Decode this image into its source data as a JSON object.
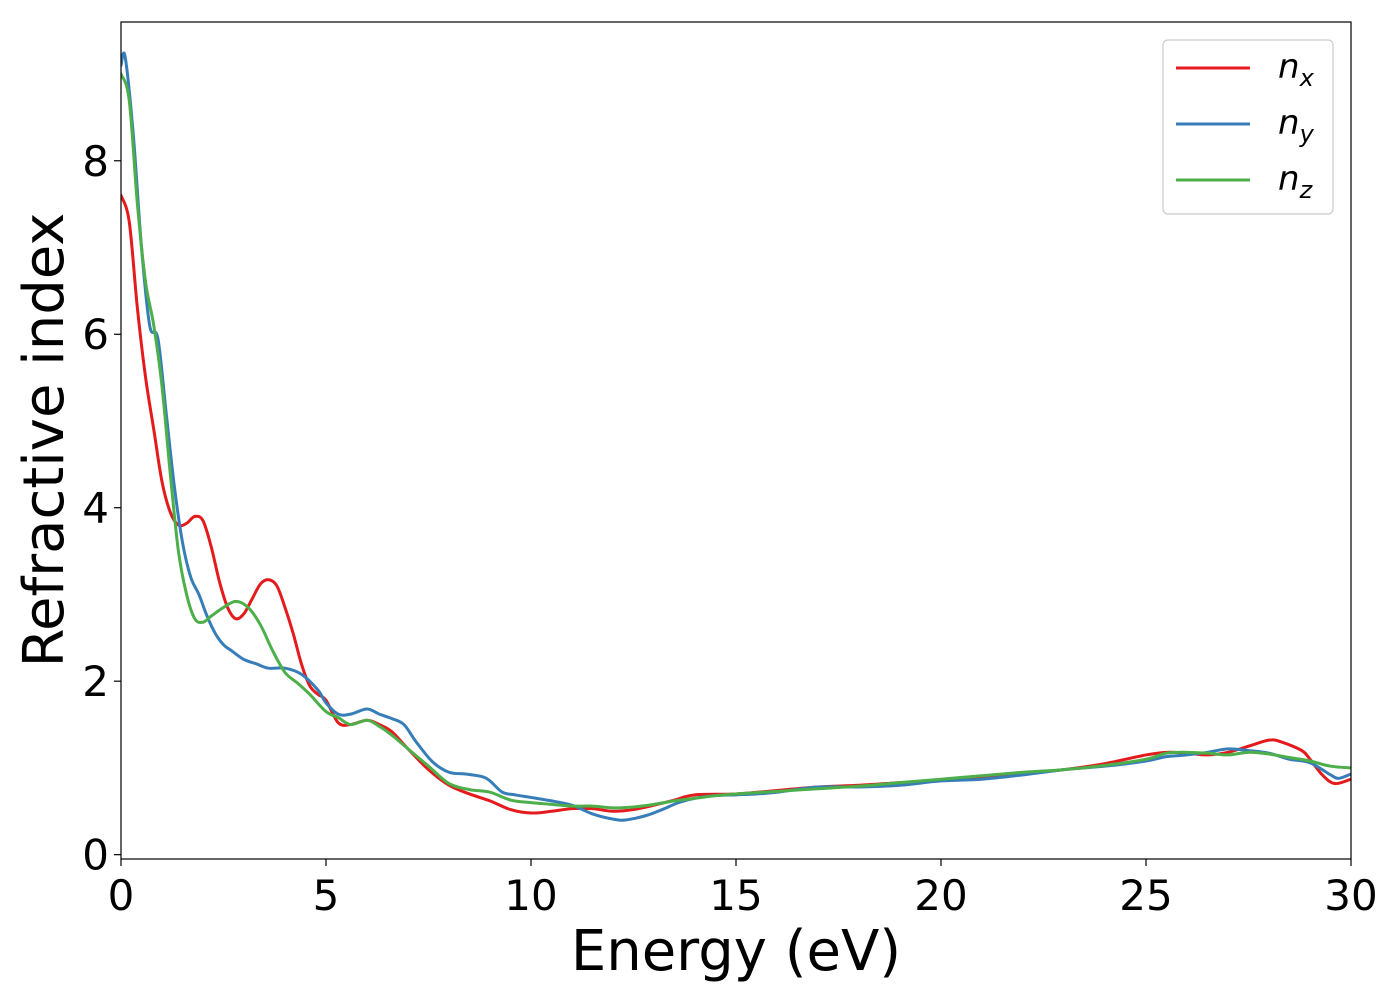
{
  "chart_data": {
    "type": "line",
    "xlabel": "Energy (eV)",
    "ylabel": "Refractive index",
    "xlim": [
      0,
      30
    ],
    "ylim": [
      -0.05,
      9.6
    ],
    "xticks": [
      0,
      5,
      10,
      15,
      20,
      25,
      30
    ],
    "yticks": [
      0,
      2,
      4,
      6,
      8
    ],
    "grid": false,
    "legend_position": "top-right",
    "series": [
      {
        "name": "n_x",
        "label_base": "n",
        "label_sub": "x",
        "color": "#e41a1c",
        "x": [
          0,
          0.2,
          0.4,
          0.6,
          0.8,
          1.0,
          1.2,
          1.4,
          1.6,
          1.8,
          2.0,
          2.2,
          2.4,
          2.6,
          2.8,
          3.0,
          3.2,
          3.4,
          3.6,
          3.8,
          4.0,
          4.2,
          4.4,
          4.6,
          4.8,
          5.0,
          5.3,
          5.6,
          6.0,
          6.3,
          6.6,
          7.0,
          7.5,
          8.0,
          8.5,
          9.0,
          9.5,
          10.0,
          10.5,
          11.0,
          11.5,
          12.0,
          12.5,
          13.0,
          13.5,
          14.0,
          15.0,
          16.0,
          17.0,
          18.0,
          19.0,
          20.0,
          21.0,
          22.0,
          23.0,
          24.0,
          25.0,
          25.5,
          26.0,
          26.5,
          27.0,
          27.5,
          28.0,
          28.3,
          28.8,
          29.0,
          29.3,
          29.6,
          30.0
        ],
        "y": [
          7.6,
          7.3,
          6.3,
          5.5,
          4.9,
          4.3,
          3.95,
          3.8,
          3.82,
          3.9,
          3.85,
          3.55,
          3.15,
          2.85,
          2.72,
          2.78,
          2.95,
          3.12,
          3.17,
          3.1,
          2.85,
          2.55,
          2.2,
          1.95,
          1.85,
          1.78,
          1.52,
          1.5,
          1.55,
          1.5,
          1.42,
          1.22,
          0.98,
          0.8,
          0.7,
          0.62,
          0.52,
          0.48,
          0.5,
          0.53,
          0.53,
          0.5,
          0.52,
          0.57,
          0.63,
          0.69,
          0.7,
          0.74,
          0.78,
          0.8,
          0.83,
          0.86,
          0.9,
          0.93,
          0.98,
          1.05,
          1.15,
          1.18,
          1.17,
          1.15,
          1.18,
          1.25,
          1.32,
          1.3,
          1.2,
          1.1,
          0.92,
          0.82,
          0.87
        ]
      },
      {
        "name": "n_y",
        "label_base": "n",
        "label_sub": "y",
        "color": "#377eb8",
        "x": [
          0,
          0.1,
          0.3,
          0.5,
          0.7,
          0.9,
          1.1,
          1.3,
          1.5,
          1.7,
          1.9,
          2.1,
          2.3,
          2.5,
          2.7,
          3.0,
          3.3,
          3.6,
          4.0,
          4.4,
          4.8,
          5.0,
          5.3,
          5.6,
          6.0,
          6.3,
          6.6,
          6.9,
          7.2,
          7.6,
          8.0,
          8.4,
          8.8,
          9.0,
          9.3,
          9.6,
          10.0,
          10.5,
          11.0,
          11.5,
          12.0,
          12.3,
          12.8,
          13.2,
          13.6,
          14.0,
          14.5,
          15.0,
          15.5,
          16.0,
          17.0,
          18.0,
          19.0,
          20.0,
          21.0,
          22.0,
          23.0,
          24.0,
          25.0,
          25.5,
          26.0,
          26.5,
          27.0,
          27.5,
          28.0,
          28.5,
          29.0,
          29.5,
          29.7,
          30.0
        ],
        "y": [
          9.1,
          9.2,
          8.3,
          7.0,
          6.1,
          5.95,
          5.1,
          4.25,
          3.6,
          3.2,
          3.0,
          2.75,
          2.55,
          2.42,
          2.35,
          2.25,
          2.2,
          2.15,
          2.15,
          2.08,
          1.9,
          1.75,
          1.62,
          1.62,
          1.68,
          1.62,
          1.57,
          1.5,
          1.3,
          1.07,
          0.95,
          0.93,
          0.9,
          0.85,
          0.72,
          0.69,
          0.66,
          0.62,
          0.57,
          0.47,
          0.41,
          0.4,
          0.45,
          0.52,
          0.6,
          0.65,
          0.68,
          0.69,
          0.7,
          0.72,
          0.78,
          0.78,
          0.8,
          0.85,
          0.87,
          0.92,
          0.98,
          1.02,
          1.08,
          1.13,
          1.15,
          1.18,
          1.22,
          1.2,
          1.17,
          1.1,
          1.06,
          0.92,
          0.88,
          0.93
        ]
      },
      {
        "name": "n_z",
        "label_base": "n",
        "label_sub": "z",
        "color": "#4daf4a",
        "x": [
          0,
          0.2,
          0.4,
          0.6,
          0.8,
          1.0,
          1.2,
          1.4,
          1.6,
          1.8,
          2.0,
          2.2,
          2.5,
          2.8,
          3.1,
          3.4,
          3.7,
          4.0,
          4.3,
          4.6,
          5.0,
          5.3,
          5.6,
          6.0,
          6.3,
          6.6,
          7.0,
          7.5,
          8.0,
          8.5,
          9.0,
          9.5,
          10.0,
          10.5,
          11.0,
          11.5,
          12.0,
          12.5,
          13.0,
          13.5,
          14.0,
          14.5,
          15.0,
          16.0,
          17.0,
          18.0,
          19.0,
          20.0,
          21.0,
          22.0,
          23.0,
          24.0,
          25.0,
          25.5,
          26.0,
          26.5,
          27.0,
          27.5,
          28.0,
          28.5,
          29.0,
          29.5,
          30.0
        ],
        "y": [
          9.0,
          8.7,
          7.5,
          6.6,
          6.1,
          5.4,
          4.4,
          3.5,
          3.0,
          2.72,
          2.68,
          2.75,
          2.85,
          2.92,
          2.85,
          2.65,
          2.35,
          2.1,
          1.98,
          1.85,
          1.65,
          1.58,
          1.5,
          1.55,
          1.48,
          1.38,
          1.22,
          1.02,
          0.82,
          0.75,
          0.72,
          0.63,
          0.6,
          0.58,
          0.56,
          0.56,
          0.54,
          0.55,
          0.58,
          0.62,
          0.65,
          0.68,
          0.7,
          0.73,
          0.76,
          0.79,
          0.83,
          0.87,
          0.91,
          0.95,
          0.98,
          1.03,
          1.1,
          1.17,
          1.18,
          1.17,
          1.15,
          1.18,
          1.16,
          1.12,
          1.08,
          1.02,
          1.0
        ]
      }
    ]
  }
}
